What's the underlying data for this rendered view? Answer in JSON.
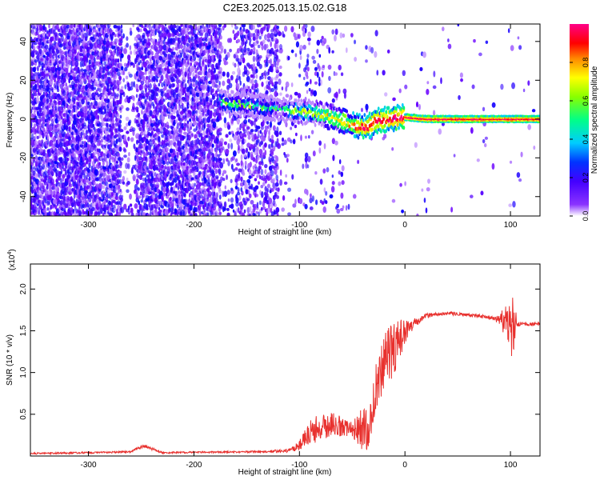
{
  "title": "C2E3.2025.013.15.02.G18",
  "colors": {
    "snr_line": "#e8312e",
    "axis": "#000000"
  },
  "chart_data": [
    {
      "type": "heatmap",
      "xlabel": "Height of straight line (km)",
      "ylabel": "Frequency (Hz)",
      "xlim": [
        -355,
        128
      ],
      "ylim": [
        -50,
        49
      ],
      "xticks": [
        -300,
        -200,
        -100,
        0,
        100
      ],
      "xtick_labels": [
        "-300",
        "-200",
        "-100",
        "0",
        "100"
      ],
      "yticks": [
        -40,
        -20,
        0,
        20,
        40
      ],
      "ytick_labels": [
        "-40",
        "-20",
        "0",
        "20",
        "40"
      ],
      "colorbar": {
        "label": "Normalized spectral amplitude",
        "range": [
          0,
          1
        ],
        "ticks": [
          0.0,
          0.2,
          0.4,
          0.6,
          0.8
        ],
        "tick_labels": [
          "0.0",
          "0.2",
          "0.4",
          "0.6",
          "0.8"
        ],
        "colormap": [
          "#ffffff",
          "#6a00ff",
          "#0000ff",
          "#00ccff",
          "#00ff66",
          "#aaff00",
          "#ffff00",
          "#ff8800",
          "#ff0000",
          "#ff0088"
        ]
      },
      "signal_track": {
        "x": [
          -175,
          -160,
          -140,
          -120,
          -100,
          -85,
          -70,
          -55,
          -45,
          -35,
          -28,
          -15,
          -5,
          0,
          20,
          60,
          100,
          128
        ],
        "frequency": [
          9,
          8,
          7,
          5,
          4,
          3,
          1,
          -2,
          -4,
          -4,
          -1,
          0,
          1,
          1,
          0,
          0,
          0,
          0
        ],
        "amplitude": [
          0.45,
          0.5,
          0.45,
          0.4,
          0.55,
          0.6,
          0.7,
          0.75,
          0.85,
          0.95,
          0.9,
          0.9,
          0.95,
          0.97,
          0.97,
          0.97,
          0.97,
          0.97
        ]
      }
    },
    {
      "type": "line",
      "xlabel": "Height of straight line (km)",
      "ylabel": "SNR (10 * v/v)",
      "scale_label": "(x10",
      "scale_exponent": "4",
      "scale_close": ")",
      "xlim": [
        -355,
        128
      ],
      "ylim": [
        0,
        2.3
      ],
      "xticks": [
        -300,
        -200,
        -100,
        0,
        100
      ],
      "xtick_labels": [
        "-300",
        "-200",
        "-100",
        "0",
        "100"
      ],
      "yticks": [
        0.5,
        1.0,
        1.5,
        2.0
      ],
      "ytick_labels": [
        "0.5",
        "1.0",
        "1.5",
        "2.0"
      ],
      "series": [
        {
          "x": [
            -355,
            -300,
            -260,
            -248,
            -243,
            -230,
            -150,
            -110,
            -100,
            -95,
            -90,
            -80,
            -70,
            -60,
            -52,
            -45,
            -40,
            -35,
            -28,
            -22,
            -15,
            -8,
            0,
            10,
            20,
            30,
            40,
            50,
            60,
            70,
            80,
            90,
            95,
            100,
            103,
            106,
            110,
            120,
            128
          ],
          "y": [
            0.03,
            0.04,
            0.05,
            0.12,
            0.1,
            0.04,
            0.05,
            0.06,
            0.12,
            0.22,
            0.3,
            0.33,
            0.38,
            0.35,
            0.3,
            0.33,
            0.32,
            0.3,
            0.8,
            1.05,
            1.2,
            1.35,
            1.5,
            1.6,
            1.68,
            1.7,
            1.71,
            1.7,
            1.69,
            1.68,
            1.66,
            1.63,
            1.6,
            1.62,
            1.62,
            1.58,
            1.58,
            1.58,
            1.58
          ],
          "jitter": [
            0.01,
            0.01,
            0.01,
            0.02,
            0.02,
            0.01,
            0.01,
            0.02,
            0.06,
            0.12,
            0.18,
            0.15,
            0.15,
            0.12,
            0.1,
            0.2,
            0.25,
            0.25,
            0.35,
            0.35,
            0.35,
            0.3,
            0.15,
            0.05,
            0.03,
            0.02,
            0.02,
            0.02,
            0.02,
            0.02,
            0.02,
            0.05,
            0.25,
            0.45,
            0.4,
            0.05,
            0.02,
            0.02,
            0.02
          ]
        }
      ]
    }
  ]
}
